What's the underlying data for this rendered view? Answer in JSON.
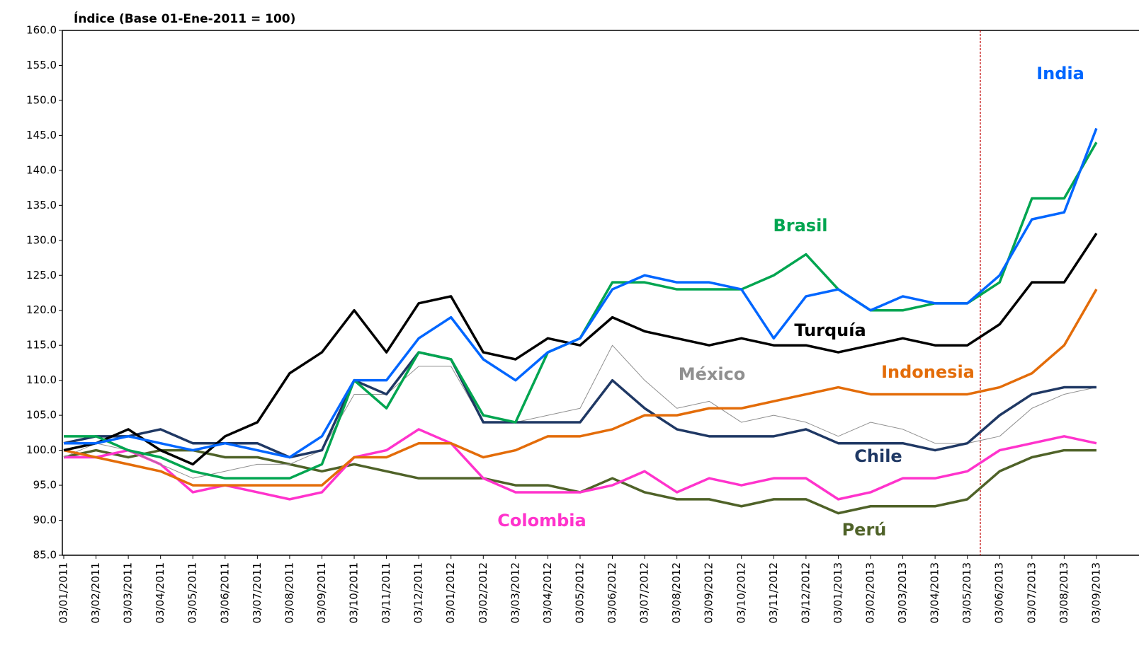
{
  "chart_data": {
    "type": "line",
    "title": "Índice (Base 01-Ene-2011 = 100)",
    "x": [
      "03/01/2011",
      "03/02/2011",
      "03/03/2011",
      "03/04/2011",
      "03/05/2011",
      "03/06/2011",
      "03/07/2011",
      "03/08/2011",
      "03/09/2011",
      "03/10/2011",
      "03/11/2011",
      "03/12/2011",
      "03/01/2012",
      "03/02/2012",
      "03/03/2012",
      "03/04/2012",
      "03/05/2012",
      "03/06/2012",
      "03/07/2012",
      "03/08/2012",
      "03/09/2012",
      "03/10/2012",
      "03/11/2012",
      "03/12/2012",
      "03/01/2013",
      "03/02/2013",
      "03/03/2013",
      "03/04/2013",
      "03/05/2013",
      "03/06/2013",
      "03/07/2013",
      "03/08/2013",
      "03/09/2013"
    ],
    "ylim": [
      85,
      160
    ],
    "yticks": [
      {
        "value": 85,
        "label": "85.0"
      },
      {
        "value": 90,
        "label": "90.0"
      },
      {
        "value": 95,
        "label": "95.0"
      },
      {
        "value": 100,
        "label": "100.0"
      },
      {
        "value": 105,
        "label": "105.0"
      },
      {
        "value": 110,
        "label": "110.0"
      },
      {
        "value": 115,
        "label": "115.0"
      },
      {
        "value": 120,
        "label": "120.0"
      },
      {
        "value": 125,
        "label": "125.0"
      },
      {
        "value": 130,
        "label": "130.0"
      },
      {
        "value": 135,
        "label": "135.0"
      },
      {
        "value": 140,
        "label": "140.0"
      },
      {
        "value": 145,
        "label": "145.0"
      },
      {
        "value": 150,
        "label": "150.0"
      },
      {
        "value": 155,
        "label": "155.0"
      },
      {
        "value": 160,
        "label": "160.0"
      }
    ],
    "series": [
      {
        "name": "Perú",
        "color": "#4f6228",
        "values": [
          99,
          100,
          99,
          100,
          100,
          99,
          99,
          98,
          97,
          98,
          97,
          96,
          96,
          96,
          95,
          95,
          94,
          96,
          94,
          93,
          93,
          92,
          93,
          93,
          91,
          92,
          92,
          92,
          93,
          97,
          99,
          100,
          100
        ]
      },
      {
        "name": "Colombia",
        "color": "#ff33cc",
        "values": [
          99,
          99,
          100,
          98,
          94,
          95,
          94,
          93,
          94,
          99,
          100,
          103,
          101,
          96,
          94,
          94,
          94,
          95,
          97,
          94,
          96,
          95,
          96,
          96,
          93,
          94,
          96,
          96,
          97,
          100,
          101,
          102,
          101
        ]
      },
      {
        "name": "México",
        "color": "#909090",
        "values": [
          99,
          101,
          100,
          98,
          96,
          97,
          98,
          98,
          100,
          108,
          108,
          112,
          112,
          104,
          104,
          105,
          106,
          115,
          110,
          106,
          107,
          104,
          105,
          104,
          102,
          104,
          103,
          101,
          101,
          102,
          106,
          108,
          109
        ]
      },
      {
        "name": "Chile",
        "color": "#1f3864",
        "values": [
          101,
          102,
          102,
          103,
          101,
          101,
          101,
          99,
          100,
          110,
          108,
          114,
          113,
          104,
          104,
          104,
          104,
          110,
          106,
          103,
          102,
          102,
          102,
          103,
          101,
          101,
          101,
          100,
          101,
          105,
          108,
          109,
          109
        ]
      },
      {
        "name": "Indonesia",
        "color": "#e36c09",
        "values": [
          100,
          99,
          98,
          97,
          95,
          95,
          95,
          95,
          95,
          99,
          99,
          101,
          101,
          99,
          100,
          102,
          102,
          103,
          105,
          105,
          106,
          106,
          107,
          108,
          109,
          108,
          108,
          108,
          108,
          109,
          111,
          115,
          123
        ]
      },
      {
        "name": "Turquía",
        "color": "#000000",
        "values": [
          100,
          101,
          103,
          100,
          98,
          102,
          104,
          111,
          114,
          120,
          114,
          121,
          122,
          114,
          113,
          116,
          115,
          119,
          117,
          116,
          115,
          116,
          115,
          115,
          114,
          115,
          116,
          115,
          115,
          118,
          124,
          124,
          131
        ]
      },
      {
        "name": "Brasil",
        "color": "#00a550",
        "values": [
          102,
          102,
          100,
          99,
          97,
          96,
          96,
          96,
          98,
          110,
          106,
          114,
          113,
          105,
          104,
          114,
          116,
          124,
          124,
          123,
          123,
          123,
          125,
          128,
          123,
          120,
          120,
          121,
          121,
          124,
          136,
          136,
          144
        ]
      },
      {
        "name": "India",
        "color": "#0066ff",
        "values": [
          101,
          101,
          102,
          101,
          100,
          101,
          100,
          99,
          102,
          110,
          110,
          116,
          119,
          113,
          110,
          114,
          116,
          123,
          125,
          124,
          124,
          123,
          116,
          122,
          123,
          120,
          122,
          121,
          121,
          125,
          133,
          134,
          146
        ]
      }
    ]
  }
}
